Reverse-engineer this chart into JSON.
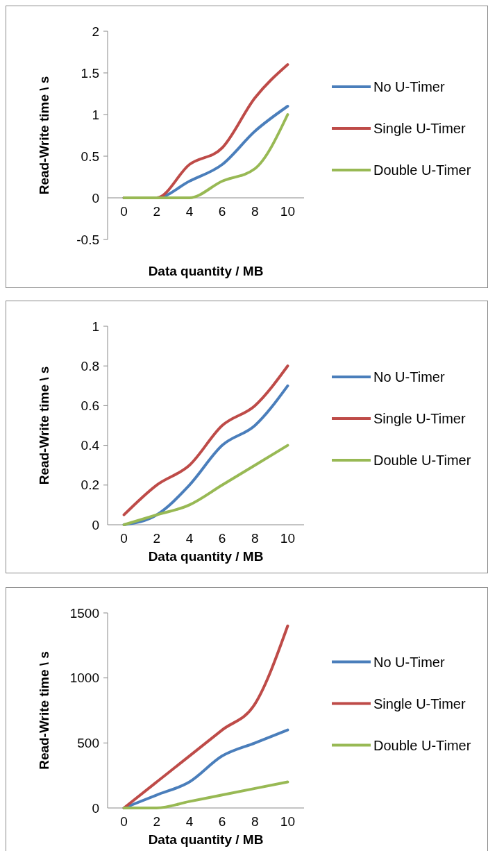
{
  "chart_data": [
    {
      "type": "line",
      "xlabel": "Data quantity / MB",
      "ylabel": "Read-Write time \\ s",
      "x": [
        0,
        2,
        4,
        6,
        8,
        10
      ],
      "xlim": [
        -1,
        11
      ],
      "xticks": [
        0,
        2,
        4,
        6,
        8,
        10
      ],
      "ylim": [
        -0.5,
        2
      ],
      "yticks": [
        -0.5,
        0,
        0.5,
        1,
        1.5,
        2
      ],
      "legend": "right",
      "grid": false,
      "marker": "none",
      "series": [
        {
          "name": "No U-Timer",
          "color": "#4a7ebb",
          "values": [
            0,
            0,
            0.2,
            0.4,
            0.8,
            1.1
          ]
        },
        {
          "name": "Single U-Timer",
          "color": "#be4b48",
          "values": [
            0,
            0,
            0.4,
            0.6,
            1.2,
            1.6
          ]
        },
        {
          "name": "Double U-Timer",
          "color": "#98b954",
          "values": [
            0,
            0,
            0,
            0.2,
            0.35,
            1
          ]
        }
      ]
    },
    {
      "type": "line",
      "xlabel": "Data quantity / MB",
      "ylabel": "Read-Write time \\ s",
      "x": [
        0,
        2,
        4,
        6,
        8,
        10
      ],
      "xlim": [
        -1,
        11
      ],
      "xticks": [
        0,
        2,
        4,
        6,
        8,
        10
      ],
      "ylim": [
        0,
        1
      ],
      "yticks": [
        0,
        0.2,
        0.4,
        0.6,
        0.8,
        1
      ],
      "legend": "right",
      "grid": false,
      "marker": "none",
      "series": [
        {
          "name": "No U-Timer",
          "color": "#4a7ebb",
          "values": [
            0,
            0.05,
            0.2,
            0.4,
            0.5,
            0.7
          ]
        },
        {
          "name": "Single U-Timer",
          "color": "#be4b48",
          "values": [
            0.05,
            0.2,
            0.3,
            0.5,
            0.6,
            0.8
          ]
        },
        {
          "name": "Double U-Timer",
          "color": "#98b954",
          "values": [
            0,
            0.05,
            0.1,
            0.2,
            0.3,
            0.4
          ]
        }
      ]
    },
    {
      "type": "line",
      "xlabel": "Data quantity / MB",
      "ylabel": "Read-Write time \\ s",
      "x": [
        0,
        2,
        4,
        6,
        8,
        10
      ],
      "xlim": [
        -1,
        11
      ],
      "xticks": [
        0,
        2,
        4,
        6,
        8,
        10
      ],
      "ylim": [
        0,
        1500
      ],
      "yticks": [
        0,
        500,
        1000,
        1500
      ],
      "legend": "right",
      "grid": false,
      "marker": "none",
      "series": [
        {
          "name": "No U-Timer",
          "color": "#4a7ebb",
          "values": [
            0,
            100,
            200,
            400,
            500,
            600
          ]
        },
        {
          "name": "Single U-Timer",
          "color": "#be4b48",
          "values": [
            0,
            200,
            400,
            600,
            800,
            1400
          ]
        },
        {
          "name": "Double U-Timer",
          "color": "#98b954",
          "values": [
            0,
            0,
            50,
            100,
            150,
            200
          ]
        }
      ]
    }
  ]
}
